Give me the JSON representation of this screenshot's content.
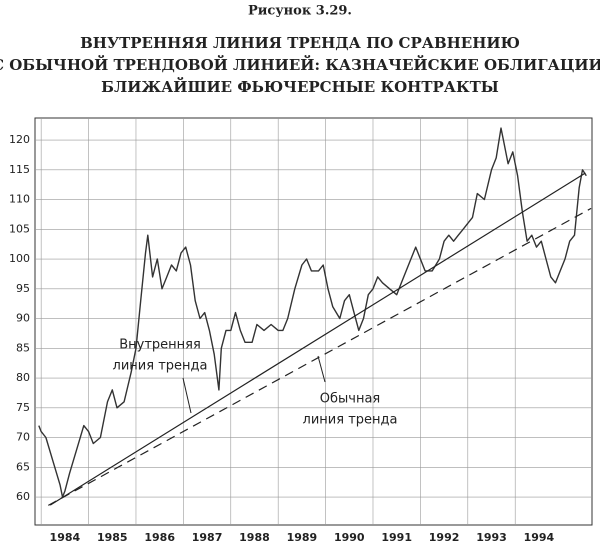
{
  "chart_data": {
    "type": "line",
    "caption": "Рисунок 3.29.",
    "title": [
      "ВНУТРЕННЯЯ ЛИНИЯ ТРЕНДА ПО СРАВНЕНИЮ",
      "С ОБЫЧНОЙ ТРЕНДОВОЙ ЛИНИЕЙ: КАЗНАЧЕЙСКИЕ ОБЛИГАЦИИ,",
      "БЛИЖАЙШИЕ ФЬЮЧЕРСНЫЕ КОНТРАКТЫ"
    ],
    "x": [
      1983.95,
      1984.0,
      1984.1,
      1984.25,
      1984.4,
      1984.45,
      1984.5,
      1984.6,
      1984.75,
      1984.9,
      1985.0,
      1985.1,
      1985.25,
      1985.4,
      1985.5,
      1985.6,
      1985.75,
      1985.9,
      1986.0,
      1986.1,
      1986.2,
      1986.25,
      1986.35,
      1986.45,
      1986.55,
      1986.65,
      1986.75,
      1986.85,
      1986.95,
      1987.05,
      1987.15,
      1987.25,
      1987.35,
      1987.45,
      1987.55,
      1987.65,
      1987.75,
      1987.8,
      1987.9,
      1988.0,
      1988.1,
      1988.2,
      1988.3,
      1988.45,
      1988.55,
      1988.7,
      1988.85,
      1989.0,
      1989.1,
      1989.2,
      1989.35,
      1989.5,
      1989.6,
      1989.7,
      1989.85,
      1989.95,
      1990.05,
      1990.15,
      1990.3,
      1990.4,
      1990.5,
      1990.6,
      1990.7,
      1990.8,
      1990.9,
      1991.0,
      1991.1,
      1991.2,
      1991.35,
      1991.5,
      1991.6,
      1991.75,
      1991.9,
      1992.0,
      1992.1,
      1992.25,
      1992.4,
      1992.5,
      1992.6,
      1992.7,
      1992.8,
      1992.9,
      1993.0,
      1993.1,
      1993.2,
      1993.35,
      1993.5,
      1993.6,
      1993.7,
      1993.75,
      1993.85,
      1993.95,
      1994.05,
      1994.15,
      1994.25,
      1994.35,
      1994.45,
      1994.55,
      1994.65,
      1994.75,
      1994.85,
      1994.95,
      1995.05,
      1995.15,
      1995.25,
      1995.35,
      1995.42,
      1995.5
    ],
    "values": [
      72,
      71,
      70,
      66,
      62,
      60,
      61,
      64,
      68,
      72,
      71,
      69,
      70,
      76,
      78,
      75,
      76,
      81,
      85,
      93,
      101,
      104,
      97,
      100,
      95,
      97,
      99,
      98,
      101,
      102,
      99,
      93,
      90,
      91,
      88,
      84,
      78,
      85,
      88,
      88,
      91,
      88,
      86,
      86,
      89,
      88,
      89,
      88,
      88,
      90,
      95,
      99,
      100,
      98,
      98,
      99,
      95,
      92,
      90,
      93,
      94,
      91,
      88,
      90,
      94,
      95,
      97,
      96,
      95,
      94,
      96,
      99,
      102,
      100,
      98,
      98,
      100,
      103,
      104,
      103,
      104,
      105,
      106,
      107,
      111,
      110,
      115,
      117,
      122,
      120,
      116,
      118,
      114,
      108,
      103,
      104,
      102,
      103,
      100,
      97,
      96,
      98,
      100,
      103,
      104,
      112,
      115,
      114
    ],
    "color": "#333333",
    "trend_lines": [
      {
        "label": [
          "Внутренняя",
          "линия тренда"
        ],
        "x": [
          1984.19,
          1995.48
        ],
        "values": [
          58.65,
          114.45
        ],
        "dashed": false
      },
      {
        "label": [
          "Обычная",
          "линия тренда"
        ],
        "x": [
          1984.15,
          1995.6
        ],
        "values": [
          58.6,
          108.5
        ],
        "dashed": true
      }
    ],
    "xlim": [
      1983.87,
      1995.62
    ],
    "xticks": [
      {
        "value": 1984,
        "label": "1984"
      },
      {
        "value": 1985,
        "label": "1985"
      },
      {
        "value": 1986,
        "label": "1986"
      },
      {
        "value": 1987,
        "label": "1987"
      },
      {
        "value": 1988,
        "label": "1988"
      },
      {
        "value": 1989,
        "label": "1989"
      },
      {
        "value": 1990,
        "label": "1990"
      },
      {
        "value": 1991,
        "label": "1991"
      },
      {
        "value": 1992,
        "label": "1992"
      },
      {
        "value": 1993,
        "label": "1993"
      },
      {
        "value": 1994,
        "label": "1994"
      }
    ],
    "ylim": [
      55.3,
      123.7
    ],
    "yticks": [
      60,
      65,
      70,
      75,
      80,
      85,
      90,
      95,
      100,
      105,
      110,
      115,
      120
    ],
    "grid": true
  }
}
